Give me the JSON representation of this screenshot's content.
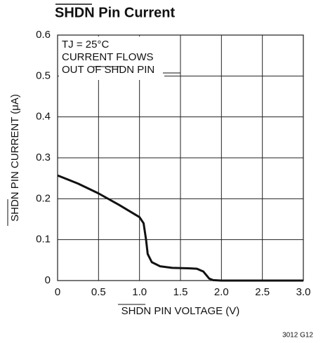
{
  "chart_data": {
    "type": "line",
    "title": "SHDN Pin Current",
    "xlabel": "SHDN PIN VOLTAGE (V)",
    "ylabel": "SHDN PIN CURRENT (μA)",
    "annotations": [
      "TJ = 25°C",
      "CURRENT FLOWS",
      "OUT OF SHDN PIN"
    ],
    "footnote": "3012 G12",
    "x": [
      0,
      0.25,
      0.5,
      0.75,
      1.0,
      1.05,
      1.08,
      1.1,
      1.15,
      1.25,
      1.4,
      1.6,
      1.7,
      1.78,
      1.85,
      1.9,
      2.0,
      2.5,
      3.0
    ],
    "series": [
      {
        "color": "#111111",
        "values": [
          0.257,
          0.237,
          0.213,
          0.185,
          0.155,
          0.14,
          0.1,
          0.065,
          0.045,
          0.035,
          0.031,
          0.03,
          0.029,
          0.022,
          0.005,
          0.001,
          0,
          0,
          0
        ]
      }
    ],
    "xlim": [
      0,
      3
    ],
    "ylim": [
      0,
      0.6
    ],
    "xticks": [
      0,
      0.5,
      {
        "value": 1,
        "label": "1.0"
      },
      1.5,
      {
        "value": 2,
        "label": "2.0"
      },
      2.5,
      {
        "value": 3,
        "label": "3.0"
      }
    ],
    "yticks": [
      0,
      0.1,
      0.2,
      0.3,
      0.4,
      0.5,
      0.6
    ],
    "grid": true
  }
}
